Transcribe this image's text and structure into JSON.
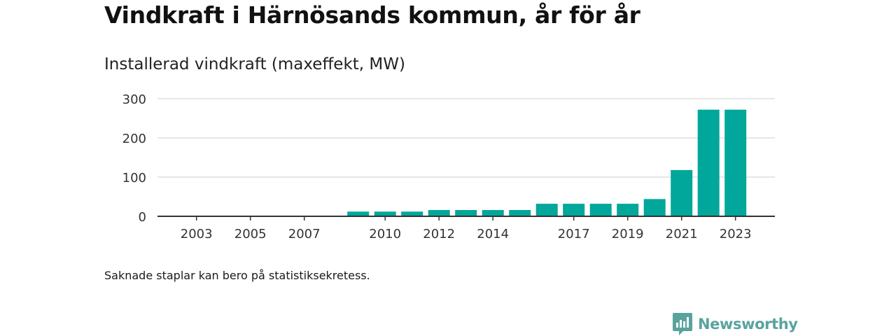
{
  "title": "Vindkraft i Härnösands kommun, år för år",
  "subtitle": "Installerad vindkraft (maxeffekt, MW)",
  "footnote": "Saknade staplar kan bero på statistiksekretess.",
  "brand": {
    "name": "Newsworthy",
    "color": "#5aa39d",
    "icon": "newsworthy-logo-icon"
  },
  "colors": {
    "bar": "#00a79a",
    "grid": "#dddddd",
    "axis": "#333333"
  },
  "chart_data": {
    "type": "bar",
    "title": "Installerad vindkraft (maxeffekt, MW)",
    "xlabel": "",
    "ylabel": "",
    "ylim": [
      0,
      300
    ],
    "yticks": [
      0,
      100,
      200,
      300
    ],
    "grid": true,
    "legend": "none",
    "x_tick_labels": [
      "2003",
      "2005",
      "2007",
      "2010",
      "2012",
      "2014",
      "2017",
      "2019",
      "2021",
      "2023"
    ],
    "categories": [
      "2002",
      "2003",
      "2004",
      "2005",
      "2006",
      "2007",
      "2008",
      "2009",
      "2010",
      "2011",
      "2012",
      "2013",
      "2014",
      "2015",
      "2016",
      "2017",
      "2018",
      "2019",
      "2020",
      "2021",
      "2022",
      "2023"
    ],
    "values": [
      null,
      null,
      null,
      null,
      null,
      null,
      null,
      12,
      12,
      12,
      16,
      16,
      16,
      16,
      32,
      32,
      32,
      32,
      44,
      118,
      272,
      272
    ]
  }
}
